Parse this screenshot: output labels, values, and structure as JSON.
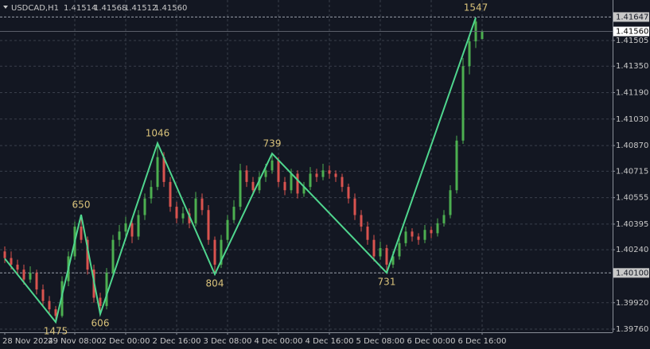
{
  "chart_data": {
    "type": "candlestick",
    "title": "USDCAD,H1",
    "header_values": [
      "1.41514",
      "1.41568",
      "1.41512",
      "1.41560"
    ],
    "categories": [
      "28 Nov 2024",
      null,
      null,
      null,
      null,
      null,
      null,
      null,
      null,
      null,
      null,
      "29 Nov 08:00",
      null,
      null,
      null,
      null,
      null,
      null,
      null,
      "2 Dec 00:00",
      null,
      null,
      null,
      null,
      null,
      null,
      null,
      "2 Dec 16:00",
      null,
      null,
      null,
      null,
      null,
      null,
      null,
      "3 Dec 08:00",
      null,
      null,
      null,
      null,
      null,
      null,
      null,
      "4 Dec 00:00",
      null,
      null,
      null,
      null,
      null,
      null,
      null,
      "4 Dec 16:00",
      null,
      null,
      null,
      null,
      null,
      null,
      null,
      "5 Dec 08:00",
      null,
      null,
      null,
      null,
      null,
      null,
      null,
      "6 Dec 00:00",
      null,
      null,
      null,
      null,
      null,
      null,
      null,
      "6 Dec 16:00"
    ],
    "open": [
      1.4023,
      1.4019,
      1.4015,
      1.4012,
      1.4006,
      1.401,
      1.4,
      1.3993,
      1.3988,
      1.3984,
      1.4005,
      1.402,
      1.4038,
      1.403,
      1.4012,
      1.3995,
      1.399,
      1.401,
      1.403,
      1.4035,
      1.404,
      1.4032,
      1.4045,
      1.4055,
      1.4062,
      1.408,
      1.4065,
      1.405,
      1.4043,
      1.4046,
      1.404,
      1.4055,
      1.4048,
      1.403,
      1.4015,
      1.403,
      1.4042,
      1.405,
      1.4072,
      1.4065,
      1.406,
      1.4068,
      1.4072,
      1.4078,
      1.4065,
      1.406,
      1.407,
      1.4058,
      1.4062,
      1.407,
      1.4068,
      1.4072,
      1.407,
      1.4068,
      1.4062,
      1.4055,
      1.4045,
      1.4038,
      1.403,
      1.402,
      1.4025,
      1.4015,
      1.402,
      1.4028,
      1.4035,
      1.4032,
      1.403,
      1.4036,
      1.4034,
      1.404,
      1.4045,
      1.406,
      1.409,
      1.4135,
      1.415,
      1.41514
    ],
    "high": [
      1.4026,
      1.4023,
      1.4018,
      1.4015,
      1.4014,
      1.4012,
      1.4003,
      1.3996,
      1.399,
      1.4008,
      1.4023,
      1.4041,
      1.40452,
      1.4032,
      1.4015,
      1.3998,
      1.4013,
      1.4033,
      1.4039,
      1.4044,
      1.4043,
      1.4048,
      1.4058,
      1.4066,
      1.40885,
      1.4083,
      1.4068,
      1.4053,
      1.405,
      1.4049,
      1.4059,
      1.4058,
      1.4051,
      1.4032,
      1.4033,
      1.4045,
      1.4054,
      1.4076,
      1.4075,
      1.4068,
      1.4071,
      1.4076,
      1.40822,
      1.408,
      1.4068,
      1.4073,
      1.4072,
      1.4065,
      1.4074,
      1.4073,
      1.4076,
      1.4075,
      1.4072,
      1.407,
      1.4064,
      1.4058,
      1.4048,
      1.4041,
      1.4033,
      1.4029,
      1.4027,
      1.4023,
      1.4031,
      1.4038,
      1.4037,
      1.4034,
      1.4039,
      1.4038,
      1.4043,
      1.4048,
      1.4063,
      1.4093,
      1.414,
      1.4153,
      1.41644,
      1.41568
    ],
    "low": [
      1.4016,
      1.4012,
      1.4009,
      1.4003,
      1.4004,
      1.3997,
      1.399,
      1.3985,
      1.39803,
      1.3983,
      1.4002,
      1.4018,
      1.4028,
      1.4009,
      1.3992,
      1.39851,
      1.3988,
      1.4008,
      1.4026,
      1.4031,
      1.4028,
      1.403,
      1.4042,
      1.4052,
      1.406,
      1.4062,
      1.4047,
      1.404,
      1.404,
      1.4037,
      1.4038,
      1.4045,
      1.4027,
      1.40092,
      1.4013,
      1.4028,
      1.404,
      1.4048,
      1.4062,
      1.4057,
      1.4058,
      1.4065,
      1.407,
      1.4062,
      1.4057,
      1.4058,
      1.4055,
      1.4056,
      1.406,
      1.4065,
      1.4066,
      1.4067,
      1.4065,
      1.4059,
      1.4052,
      1.4042,
      1.4035,
      1.4027,
      1.4017,
      1.4018,
      1.40101,
      1.4013,
      1.4018,
      1.4026,
      1.4029,
      1.4027,
      1.4028,
      1.4031,
      1.4032,
      1.4038,
      1.4043,
      1.4058,
      1.4088,
      1.413,
      1.4146,
      1.41512
    ],
    "close": [
      1.4019,
      1.4015,
      1.4012,
      1.4006,
      1.401,
      1.4,
      1.3993,
      1.3988,
      1.3984,
      1.4005,
      1.402,
      1.4038,
      1.403,
      1.4012,
      1.3995,
      1.399,
      1.401,
      1.403,
      1.4035,
      1.404,
      1.4032,
      1.4045,
      1.4055,
      1.4062,
      1.408,
      1.4065,
      1.405,
      1.4043,
      1.4046,
      1.404,
      1.4055,
      1.4048,
      1.403,
      1.4015,
      1.403,
      1.4042,
      1.405,
      1.4072,
      1.4065,
      1.406,
      1.4068,
      1.4072,
      1.4078,
      1.4065,
      1.406,
      1.407,
      1.4058,
      1.4062,
      1.407,
      1.4068,
      1.4072,
      1.407,
      1.4068,
      1.4062,
      1.4055,
      1.4045,
      1.4038,
      1.403,
      1.402,
      1.4025,
      1.4015,
      1.402,
      1.4028,
      1.4035,
      1.4032,
      1.403,
      1.4036,
      1.4034,
      1.404,
      1.4045,
      1.406,
      1.409,
      1.4135,
      1.415,
      1.4162,
      1.4156
    ],
    "up_color": "#4caf50",
    "down_color": "#d9534f",
    "zigzag": {
      "color": "#4fd68e",
      "label_color": "#d9c27a",
      "x": [
        0,
        8,
        12,
        15,
        24,
        33,
        42,
        60,
        74
      ],
      "values": [
        1.40187,
        1.39803,
        1.40452,
        1.39851,
        1.40885,
        1.40092,
        1.40822,
        1.40101,
        1.41644
      ],
      "labels": [
        null,
        1475,
        650,
        606,
        1046,
        804,
        739,
        731,
        1547
      ]
    },
    "ylim": [
      1.39741,
      1.4175
    ],
    "yticks": [
      {
        "value": 1.41505,
        "label": "1.41505"
      },
      {
        "value": 1.4135,
        "label": "1.41350"
      },
      {
        "value": 1.4119,
        "label": "1.41190"
      },
      {
        "value": 1.4103,
        "label": "1.41030"
      },
      {
        "value": 1.4087,
        "label": "1.40870"
      },
      {
        "value": 1.40715,
        "label": "1.40715"
      },
      {
        "value": 1.40555,
        "label": "1.40555"
      },
      {
        "value": 1.40395,
        "label": "1.40395"
      },
      {
        "value": 1.4024,
        "label": "1.40240"
      },
      {
        "value": 1.3992,
        "label": "1.39920"
      },
      {
        "value": 1.3976,
        "label": "1.39760"
      }
    ],
    "levels": [
      {
        "value": 1.41647,
        "label": "1.41647"
      },
      {
        "value": 1.401,
        "label": "1.40100"
      }
    ],
    "current_price": {
      "value": 1.4156,
      "label": "1.41560"
    },
    "grid": true
  }
}
